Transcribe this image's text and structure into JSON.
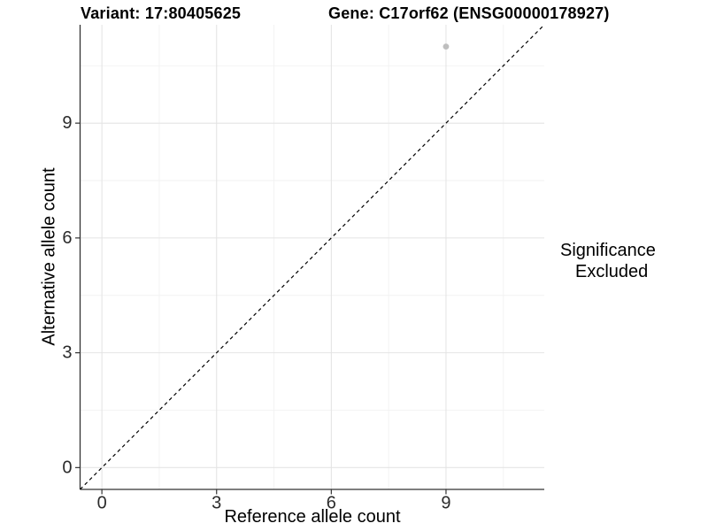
{
  "titles": {
    "left": "Variant: 17:80405625",
    "right": "Gene: C17orf62 (ENSG00000178927)"
  },
  "legend": {
    "title": "Significance",
    "items": [
      {
        "label": "Excluded",
        "color": "#bebebe"
      }
    ]
  },
  "colors": {
    "background": "#ffffff",
    "grid_major": "#e4e4e4",
    "grid_minor": "#f2f2f2",
    "axis_line": "#333333",
    "tick_mark": "#333333",
    "tick_text": "#2b2b2b",
    "reference_line": "#000000",
    "point": "#bebebe"
  },
  "chart_data": {
    "type": "scatter",
    "title": "Variant: 17:80405625  /  Gene: C17orf62 (ENSG00000178927)",
    "xlabel": "Reference allele count",
    "ylabel": "Alternative allele count",
    "xlim": [
      -0.57,
      11.57
    ],
    "ylim": [
      -0.57,
      11.57
    ],
    "x_major_ticks": [
      0,
      3,
      6,
      9
    ],
    "y_major_ticks": [
      0,
      3,
      6,
      9
    ],
    "x_tick_labels": [
      "0",
      "3",
      "6",
      "9"
    ],
    "y_tick_labels": [
      "0",
      "3",
      "6",
      "9"
    ],
    "x_minor_gridlines": [
      1.5,
      4.5,
      7.5,
      10.5
    ],
    "y_minor_gridlines": [
      1.5,
      4.5,
      7.5,
      10.5
    ],
    "grid": true,
    "legend_position": "right",
    "series": [
      {
        "name": "Excluded",
        "color": "#bebebe",
        "points": [
          {
            "x": 9,
            "y": 11
          }
        ]
      }
    ],
    "reference_line": {
      "kind": "identity",
      "intercept": 0,
      "slope": 1,
      "style": "dashed"
    }
  }
}
